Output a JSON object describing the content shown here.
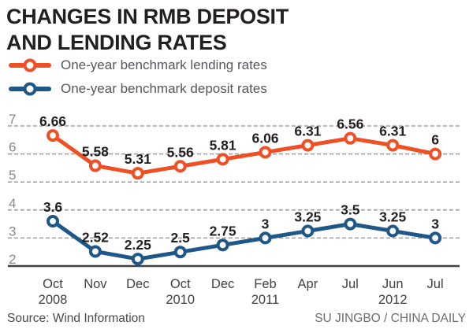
{
  "title": {
    "line1": "CHANGES IN RMB DEPOSIT",
    "line2": "AND LENDING RATES"
  },
  "legend": {
    "items": [
      {
        "label": "One-year benchmark lending rates",
        "color": "#ee4f25"
      },
      {
        "label": "One-year benchmark deposit rates",
        "color": "#1e5788"
      }
    ]
  },
  "footer": {
    "source": "Source: Wind Information",
    "credit": "SU JINGBO / CHINA DAILY"
  },
  "chart_data": {
    "type": "line",
    "title": "CHANGES IN RMB DEPOSIT AND LENDING RATES",
    "x_labels": [
      {
        "month": "Oct",
        "year": "2008"
      },
      {
        "month": "Nov",
        "year": ""
      },
      {
        "month": "Dec",
        "year": ""
      },
      {
        "month": "Oct",
        "year": "2010"
      },
      {
        "month": "Dec",
        "year": ""
      },
      {
        "month": "Feb",
        "year": "2011"
      },
      {
        "month": "Apr",
        "year": ""
      },
      {
        "month": "Jul",
        "year": ""
      },
      {
        "month": "Jun",
        "year": "2012"
      },
      {
        "month": "Jul",
        "year": ""
      }
    ],
    "series": [
      {
        "name": "One-year benchmark lending rates",
        "color": "#ee4f25",
        "values": [
          6.66,
          5.58,
          5.31,
          5.56,
          5.81,
          6.06,
          6.31,
          6.56,
          6.31,
          6
        ]
      },
      {
        "name": "One-year benchmark deposit rates",
        "color": "#1e5788",
        "values": [
          3.6,
          2.52,
          2.25,
          2.5,
          2.75,
          3,
          3.25,
          3.5,
          3.25,
          3
        ]
      }
    ],
    "y_ticks": [
      7,
      6,
      5,
      4,
      3,
      2
    ],
    "ylim": [
      2,
      7
    ],
    "grid": "dashed horizontal gridlines at each y tick, solid baseline at y=2",
    "legend_position": "top-left",
    "grid_color": "#9b9b9b",
    "axis_color": "#414042",
    "tick_label_color": "#87888a",
    "data_label_color": "#231f20"
  }
}
